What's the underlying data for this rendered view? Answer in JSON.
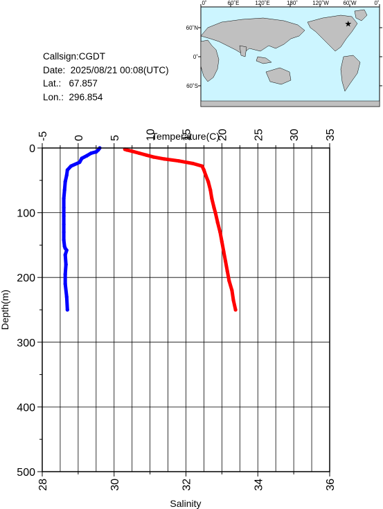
{
  "station": {
    "callsign_label": "Callsign:",
    "callsign": "CGDT",
    "date_label": "Date:",
    "date": "2025/08/21 00:08(UTC)",
    "lat_label": "Lat.:",
    "lat": "67.857",
    "lon_label": "Lon.:",
    "lon": "296.854"
  },
  "map": {
    "lon_ticks": [
      "0˚",
      "60˚E",
      "120˚E",
      "180˚",
      "120˚W",
      "60˚W",
      "0˚"
    ],
    "lat_ticks": [
      "60˚N",
      "0˚",
      "60˚S"
    ],
    "marker_lon": 296.854,
    "marker_lat": 67.857,
    "ocean_color": "#ccf5ff",
    "land_color": "#c0c0c0",
    "marker_color": "#ff0000"
  },
  "chart_data": {
    "type": "line",
    "title": "",
    "top_axis": {
      "label": "Temperature(C)",
      "range": [
        -5,
        35
      ],
      "ticks": [
        "-5",
        "0",
        "5",
        "10",
        "15",
        "20",
        "25",
        "30",
        "35"
      ]
    },
    "bottom_axis": {
      "label": "Salinity",
      "range": [
        28,
        36
      ],
      "ticks": [
        "28",
        "30",
        "32",
        "34",
        "36"
      ]
    },
    "y_axis": {
      "label": "Depth(m)",
      "range": [
        0,
        500
      ],
      "inverted": true,
      "ticks": [
        "0",
        "100",
        "200",
        "300",
        "400",
        "500"
      ]
    },
    "grid": true,
    "series": [
      {
        "color": "#0000ff",
        "axis": "temperature",
        "x": [
          3,
          2.8,
          2.5,
          1.8,
          1.2,
          0.5,
          0.2,
          -1.0,
          -1.5,
          -1.6,
          -1.8,
          -1.9,
          -2.0,
          -2.0,
          -2.0,
          -2.0,
          -2.0,
          -2.0,
          -1.9,
          -1.8,
          -1.6,
          -1.8,
          -1.7,
          -1.8,
          -1.8,
          -1.6,
          -1.5
        ],
        "depth": [
          0,
          3,
          6,
          8,
          12,
          16,
          22,
          28,
          34,
          42,
          52,
          65,
          78,
          92,
          105,
          118,
          130,
          142,
          152,
          155,
          158,
          165,
          180,
          195,
          210,
          230,
          250
        ]
      },
      {
        "color": "#ff0000",
        "axis": "salinity",
        "x": [
          30.3,
          30.35,
          30.5,
          30.7,
          30.9,
          31.1,
          31.4,
          31.8,
          32.2,
          32.45,
          32.5,
          32.55,
          32.62,
          32.68,
          32.72,
          32.78,
          32.82,
          32.88,
          32.95,
          33.0,
          33.05,
          33.1,
          33.15,
          33.2,
          33.28,
          33.32,
          33.38
        ],
        "depth": [
          2,
          3,
          5,
          8,
          11,
          14,
          17,
          20,
          24,
          28,
          34,
          42,
          52,
          65,
          78,
          92,
          100,
          115,
          130,
          145,
          160,
          175,
          190,
          205,
          220,
          235,
          250
        ]
      }
    ]
  }
}
